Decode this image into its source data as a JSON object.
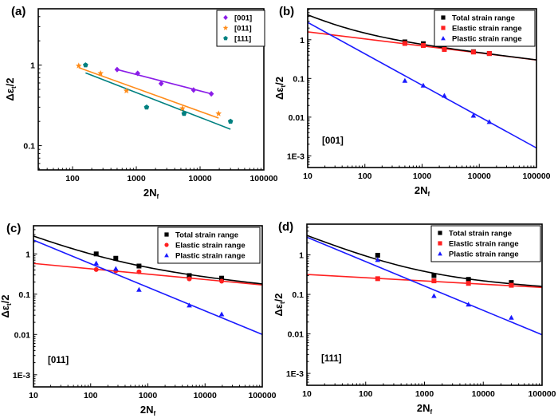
{
  "chart_data": [
    {
      "panel": "(a)",
      "type": "scatter",
      "xscale": "log",
      "yscale": "log",
      "xlabel": "2N_f",
      "ylabel": "Δε_t/2",
      "xlim": [
        29,
        100000
      ],
      "ylim": [
        0.05,
        5
      ],
      "xticks": [
        "100",
        "1000",
        "10000",
        "100000"
      ],
      "xtick_values": [
        100,
        1000,
        10000,
        100000
      ],
      "yticks": [
        "0.1",
        "1"
      ],
      "ytick_values": [
        0.1,
        1
      ],
      "legend": "top-right",
      "annotation": "",
      "series": [
        {
          "name": "[001]",
          "color": "#8b1ee8",
          "marker": "diamond",
          "x": [
            500,
            1050,
            2450,
            7900,
            15000
          ],
          "y": [
            0.88,
            0.79,
            0.59,
            0.49,
            0.44
          ],
          "fit": {
            "x": [
              500,
              15000
            ],
            "y": [
              0.88,
              0.44
            ]
          }
        },
        {
          "name": "[011]",
          "color": "#ff8c1a",
          "marker": "star",
          "x": [
            125,
            275,
            700,
            5300,
            19500
          ],
          "y": [
            0.98,
            0.79,
            0.48,
            0.29,
            0.25
          ],
          "fit": {
            "x": [
              125,
              19500
            ],
            "y": [
              0.93,
              0.22
            ]
          }
        },
        {
          "name": "[111]",
          "color": "#008080",
          "marker": "pentagon",
          "x": [
            160,
            1450,
            5600,
            30000
          ],
          "y": [
            1.0,
            0.3,
            0.25,
            0.2
          ],
          "fit": {
            "x": [
              160,
              30000
            ],
            "y": [
              0.8,
              0.16
            ]
          }
        }
      ]
    },
    {
      "panel": "(b)",
      "type": "scatter",
      "xscale": "log",
      "yscale": "log",
      "xlabel": "2N_f",
      "ylabel": "Δε_t/2",
      "xlim": [
        10,
        100000
      ],
      "ylim": [
        0.0005,
        6.3
      ],
      "xticks": [
        "10",
        "100",
        "1000",
        "10000",
        "100000"
      ],
      "xtick_values": [
        10,
        100,
        1000,
        10000,
        100000
      ],
      "yticks": [
        "1E-3",
        "0.01",
        "0.1",
        "1"
      ],
      "ytick_values": [
        0.001,
        0.01,
        0.1,
        1
      ],
      "legend": "top-right",
      "annotation": "[001]",
      "series": [
        {
          "name": "Total strain range",
          "color": "#000000",
          "marker": "square",
          "x": [
            500,
            1050,
            2450,
            7900,
            15000
          ],
          "y": [
            0.88,
            0.79,
            0.61,
            0.49,
            0.44
          ],
          "fit": {
            "type": "sum"
          }
        },
        {
          "name": "Elastic strain range",
          "color": "#ff2020",
          "marker": "square",
          "x": [
            500,
            1050,
            2450,
            7900,
            15000
          ],
          "y": [
            0.8,
            0.71,
            0.56,
            0.48,
            0.44
          ],
          "fit": {
            "type": "power",
            "x": [
              10,
              100000
            ],
            "y": [
              1.6,
              0.3
            ]
          }
        },
        {
          "name": "Plastic strain range",
          "color": "#1a1aff",
          "marker": "triangle",
          "x": [
            500,
            1050,
            2450,
            7900,
            15000
          ],
          "y": [
            0.088,
            0.066,
            0.036,
            0.011,
            0.0076
          ],
          "fit": {
            "type": "power",
            "x": [
              10,
              100000
            ],
            "y": [
              2.8,
              0.0016
            ]
          }
        }
      ]
    },
    {
      "panel": "(c)",
      "type": "scatter",
      "xscale": "log",
      "yscale": "log",
      "xlabel": "2N_f",
      "ylabel": "Δε_t/2",
      "xlim": [
        10,
        100000
      ],
      "ylim": [
        0.0005,
        5
      ],
      "xticks": [
        "10",
        "100",
        "1000",
        "10000",
        "100000"
      ],
      "xtick_values": [
        10,
        100,
        1000,
        10000,
        100000
      ],
      "yticks": [
        "1E-3",
        "0.01",
        "0.1",
        "1"
      ],
      "ytick_values": [
        0.001,
        0.01,
        0.1,
        1
      ],
      "legend": "top-right",
      "annotation": "[011]",
      "series": [
        {
          "name": "Total strain range",
          "color": "#000000",
          "marker": "square",
          "x": [
            125,
            275,
            700,
            5300,
            19500
          ],
          "y": [
            1.0,
            0.78,
            0.5,
            0.29,
            0.25
          ],
          "fit": {
            "type": "sum"
          }
        },
        {
          "name": "Elastic strain range",
          "color": "#ff2020",
          "marker": "circle",
          "x": [
            125,
            275,
            700,
            5300,
            19500
          ],
          "y": [
            0.41,
            0.38,
            0.36,
            0.24,
            0.21
          ],
          "fit": {
            "type": "power",
            "x": [
              10,
              100000
            ],
            "y": [
              0.58,
              0.17
            ]
          }
        },
        {
          "name": "Plastic strain range",
          "color": "#1a1aff",
          "marker": "triangle",
          "x": [
            125,
            275,
            700,
            5300,
            19500
          ],
          "y": [
            0.59,
            0.43,
            0.13,
            0.053,
            0.032
          ],
          "fit": {
            "type": "power",
            "x": [
              10,
              100000
            ],
            "y": [
              2.2,
              0.01
            ]
          }
        }
      ]
    },
    {
      "panel": "(d)",
      "type": "scatter",
      "xscale": "log",
      "yscale": "log",
      "xlabel": "2N_f",
      "ylabel": "Δε_t/2",
      "xlim": [
        10,
        100000
      ],
      "ylim": [
        0.0005,
        6
      ],
      "xticks": [
        "10",
        "100",
        "1000",
        "10000",
        "100000"
      ],
      "xtick_values": [
        10,
        100,
        1000,
        10000,
        100000
      ],
      "yticks": [
        "1E-3",
        "0.01",
        "0.1",
        "1"
      ],
      "ytick_values": [
        0.001,
        0.01,
        0.1,
        1
      ],
      "legend": "top-right",
      "annotation": "[111]",
      "series": [
        {
          "name": "Total strain range",
          "color": "#000000",
          "marker": "square",
          "x": [
            160,
            1450,
            5600,
            30000
          ],
          "y": [
            0.98,
            0.3,
            0.24,
            0.2
          ],
          "fit": {
            "type": "sum"
          }
        },
        {
          "name": "Elastic strain range",
          "color": "#ff2020",
          "marker": "square",
          "x": [
            160,
            1450,
            5600,
            30000
          ],
          "y": [
            0.25,
            0.22,
            0.19,
            0.17
          ],
          "fit": {
            "type": "power",
            "x": [
              10,
              100000
            ],
            "y": [
              0.32,
              0.15
            ]
          }
        },
        {
          "name": "Plastic strain range",
          "color": "#1a1aff",
          "marker": "triangle",
          "x": [
            160,
            1450,
            5600,
            30000
          ],
          "y": [
            0.75,
            0.092,
            0.056,
            0.026
          ],
          "fit": {
            "type": "power",
            "x": [
              10,
              100000
            ],
            "y": [
              2.8,
              0.0095
            ]
          }
        }
      ]
    }
  ]
}
